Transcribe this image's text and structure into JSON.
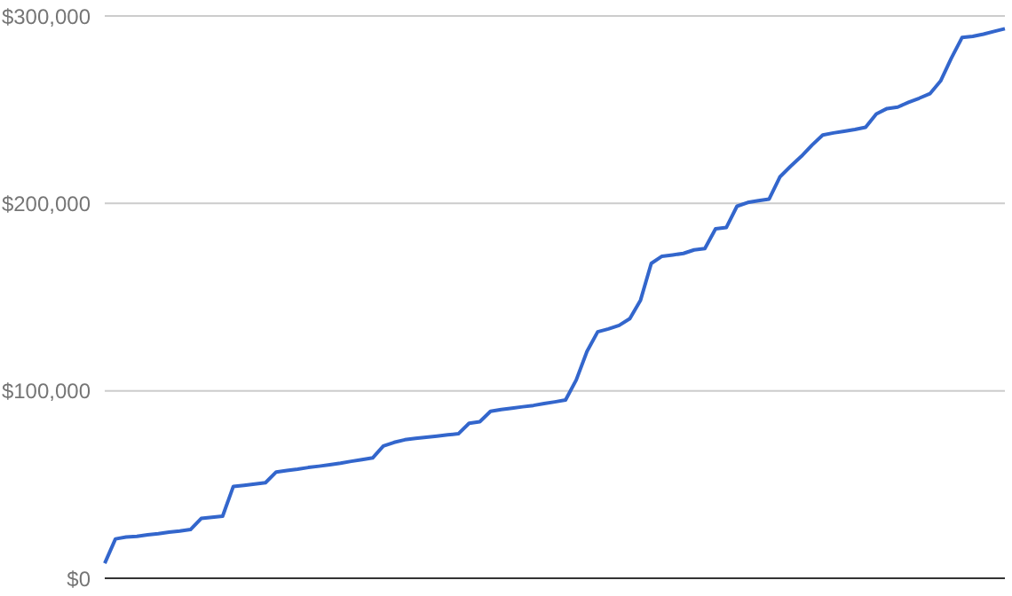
{
  "chart_data": {
    "type": "line",
    "categories": [
      null,
      null,
      null,
      null,
      null,
      null,
      null,
      null,
      null,
      null,
      null,
      null,
      null,
      null,
      null,
      null,
      null,
      null,
      null,
      null,
      null,
      null,
      null,
      null,
      null,
      null,
      null,
      null,
      null,
      null,
      null,
      null,
      null,
      null,
      null,
      null,
      null,
      null,
      null,
      null,
      null,
      null,
      null,
      null,
      null,
      null,
      null,
      null,
      null,
      null,
      null,
      null,
      null,
      null,
      null,
      null,
      null,
      null,
      null,
      null,
      null,
      null,
      null,
      null,
      null,
      null,
      null,
      null,
      null,
      null,
      null,
      null,
      null,
      null,
      null,
      null,
      null,
      null,
      null,
      null,
      null,
      null,
      null,
      null,
      null
    ],
    "series": [
      {
        "color": "#3366cc",
        "values": [
          8000,
          21000,
          22000,
          22400,
          23200,
          23800,
          24600,
          25200,
          26000,
          31900,
          32500,
          33100,
          49000,
          49600,
          50300,
          51000,
          56700,
          57500,
          58200,
          59100,
          59800,
          60600,
          61400,
          62400,
          63300,
          64200,
          70600,
          72500,
          73900,
          74600,
          75200,
          75800,
          76500,
          77100,
          82700,
          83500,
          89100,
          90000,
          90700,
          91500,
          92200,
          93200,
          94100,
          95100,
          105800,
          121000,
          131500,
          133000,
          134900,
          138500,
          148400,
          168000,
          171800,
          172500,
          173300,
          175200,
          175900,
          186400,
          187100,
          198500,
          200500,
          201500,
          202300,
          214100,
          219800,
          225100,
          231100,
          236500,
          237600,
          238500,
          239400,
          240600,
          247700,
          250600,
          251400,
          253900,
          256100,
          258500,
          265300,
          277500,
          288500,
          289100,
          290300,
          291800,
          293200
        ]
      }
    ],
    "ylim": [
      0,
      300000
    ],
    "yticks": [
      {
        "value": 0,
        "label": "$0"
      },
      {
        "value": 100000,
        "label": "$100,000"
      },
      {
        "value": 200000,
        "label": "$200,000"
      },
      {
        "value": 300000,
        "label": "$300,000"
      }
    ],
    "grid": "y",
    "tick_labels": "y",
    "marker": "none",
    "line_style": "solid"
  }
}
